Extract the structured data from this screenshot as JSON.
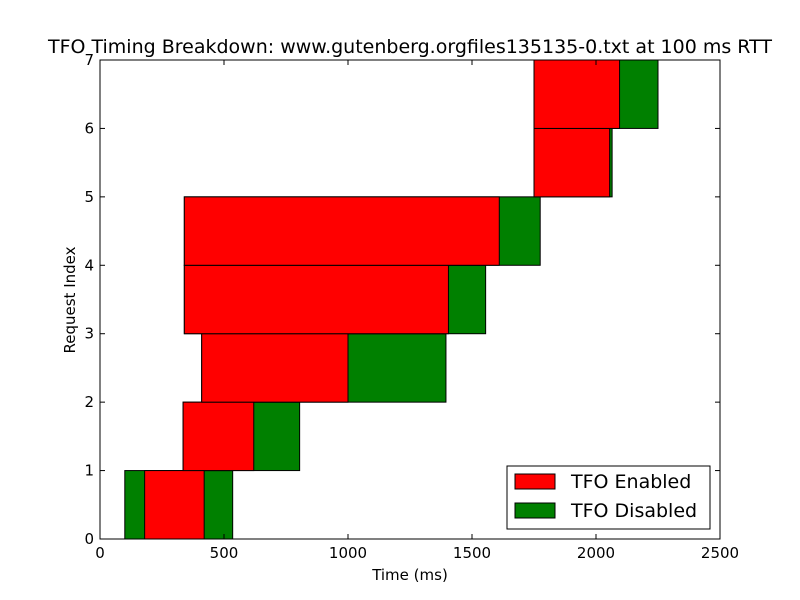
{
  "chart_data": {
    "type": "bar",
    "orientation": "horizontal-ranges",
    "title": "TFO Timing Breakdown: www.gutenberg.orgfiles135135-0.txt at 100 ms RTT",
    "xlabel": "Time (ms)",
    "ylabel": "Request Index",
    "xlim": [
      0,
      2500
    ],
    "ylim": [
      0,
      7
    ],
    "xticks": [
      0,
      500,
      1000,
      1500,
      2000,
      2500
    ],
    "yticks": [
      0,
      1,
      2,
      3,
      4,
      5,
      6,
      7
    ],
    "grid": false,
    "legend_position": "lower-right",
    "series": [
      {
        "name": "TFO Enabled",
        "color": "#ff0000",
        "bars": [
          {
            "index": 0,
            "start": 180,
            "end": 420
          },
          {
            "index": 1,
            "start": 335,
            "end": 620
          },
          {
            "index": 2,
            "start": 410,
            "end": 1000
          },
          {
            "index": 3,
            "start": 340,
            "end": 1405
          },
          {
            "index": 4,
            "start": 340,
            "end": 1610
          },
          {
            "index": 5,
            "start": 1750,
            "end": 2055
          },
          {
            "index": 6,
            "start": 1750,
            "end": 2095
          }
        ]
      },
      {
        "name": "TFO Disabled",
        "color": "#008000",
        "bars": [
          {
            "index": 0,
            "start": 100,
            "end": 535
          },
          {
            "index": 1,
            "start": 335,
            "end": 805
          },
          {
            "index": 2,
            "start": 410,
            "end": 1395
          },
          {
            "index": 3,
            "start": 340,
            "end": 1555
          },
          {
            "index": 4,
            "start": 340,
            "end": 1775
          },
          {
            "index": 5,
            "start": 1750,
            "end": 2065
          },
          {
            "index": 6,
            "start": 1750,
            "end": 2250
          }
        ]
      }
    ]
  }
}
